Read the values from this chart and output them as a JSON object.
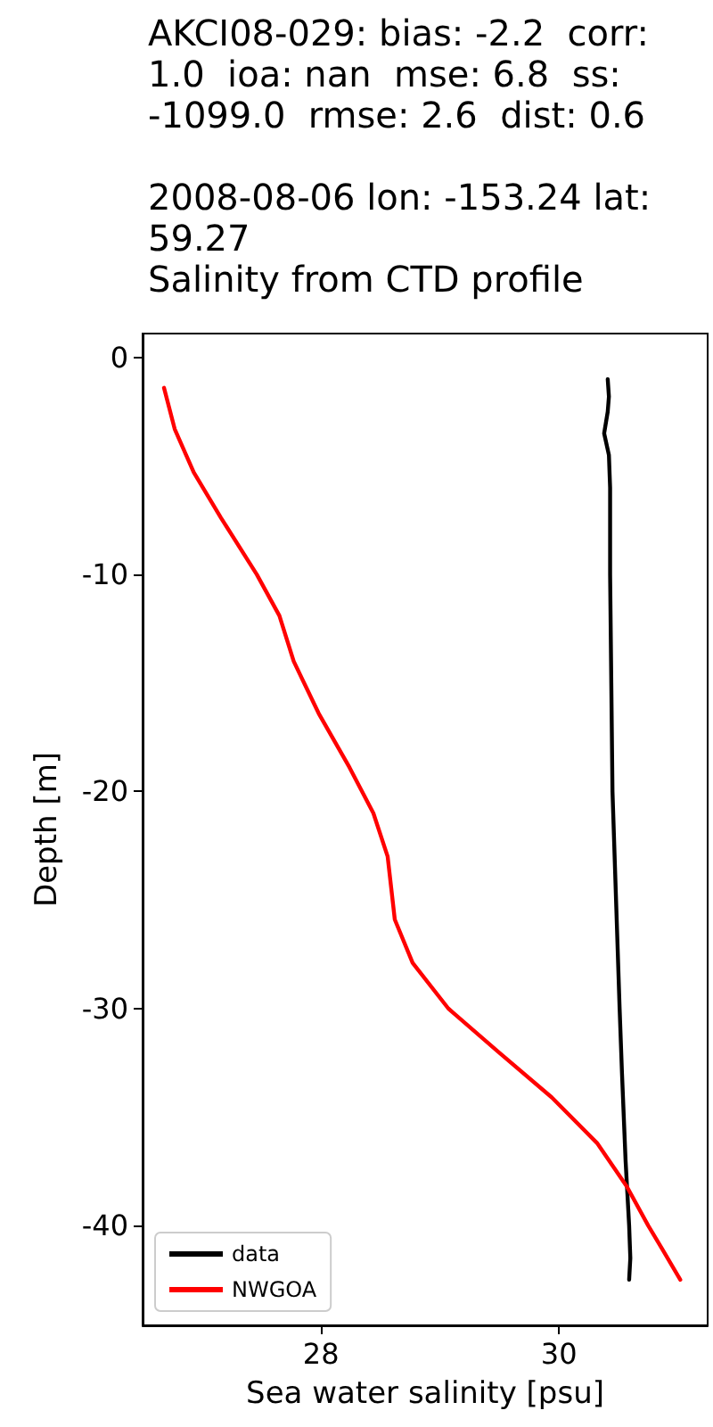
{
  "chart_data": {
    "type": "line",
    "title": "AKCI08-029: bias: -2.2  corr: 1.0  ioa: nan  mse: 6.8  ss: -1099.0  rmse: 2.6  dist: 0.6\n\n2008-08-06 lon: -153.24 lat: 59.27\nSalinity from CTD profile",
    "xlabel": "Sea water salinity [psu]",
    "ylabel": "Depth [m]",
    "series": [
      {
        "name": "data",
        "color": "#000000",
        "x": [
          30.41,
          30.42,
          30.41,
          30.38,
          30.42,
          30.43,
          30.43,
          30.44,
          30.45,
          30.48,
          30.51,
          30.53,
          30.56,
          30.59,
          30.6,
          30.59
        ],
        "values": [
          -1.0,
          -1.8,
          -2.5,
          -3.5,
          -4.5,
          -6,
          -10,
          -15,
          -20,
          -25,
          -30,
          -33,
          -37,
          -40,
          -41.5,
          -42.5
        ]
      },
      {
        "name": "NWGOA",
        "color": "#ff0000",
        "x": [
          26.68,
          26.77,
          26.93,
          27.16,
          27.46,
          27.65,
          27.77,
          27.98,
          28.24,
          28.44,
          28.56,
          28.62,
          28.77,
          29.07,
          29.49,
          29.94,
          30.32,
          30.57,
          30.75,
          30.87,
          31.02
        ],
        "values": [
          -1.4,
          -3.3,
          -5.3,
          -7.4,
          -10,
          -11.9,
          -14,
          -16.4,
          -18.9,
          -21,
          -23,
          -25.9,
          -27.9,
          -30,
          -32,
          -34.1,
          -36.2,
          -38.2,
          -40,
          -41.1,
          -42.5
        ]
      }
    ],
    "xlim": [
      26.5,
      31.25
    ],
    "xticks": [
      28,
      30
    ],
    "ylim": [
      -44.6,
      1.1
    ],
    "yticks": [
      0,
      -10,
      -20,
      -30,
      -40
    ],
    "legend": "bottom left",
    "marker": "none",
    "line_style": "solid",
    "grid": false
  }
}
